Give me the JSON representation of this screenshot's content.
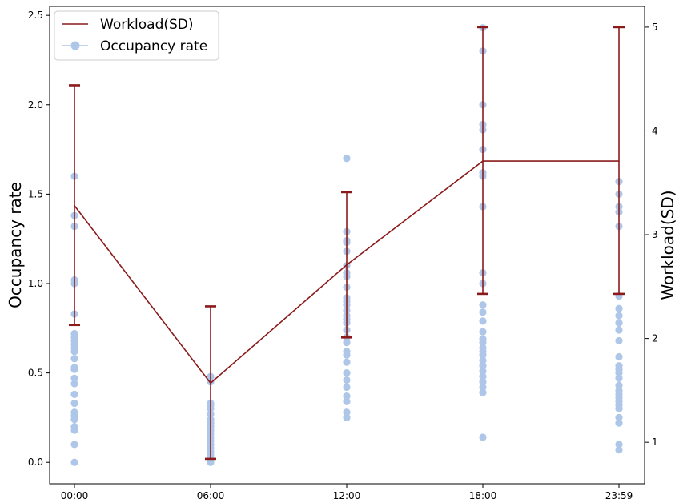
{
  "chart_data": {
    "type": "scatter",
    "categories": [
      "00:00",
      "06:00",
      "12:00",
      "18:00",
      "23:59"
    ],
    "xlabel": "",
    "ylabel": "Occupancy rate",
    "y2label": "Workload(SD)",
    "ylim": [
      -0.12,
      2.55
    ],
    "y2lim": [
      0.6,
      5.2
    ],
    "yticks": [
      "0.0",
      "0.5",
      "1.0",
      "1.5",
      "2.0",
      "2.5"
    ],
    "y2ticks": [
      "1",
      "2",
      "3",
      "4",
      "5"
    ],
    "legend_position": "top-left",
    "series": [
      {
        "name": "Occupancy rate",
        "kind": "scatter",
        "color": "#aec7e8",
        "points": [
          [
            0,
            [
              0.0,
              0.1,
              0.18,
              0.2,
              0.24,
              0.26,
              0.28,
              0.33,
              0.38,
              0.44,
              0.47,
              0.52,
              0.53,
              0.58,
              0.62,
              0.64,
              0.66,
              0.68,
              0.7,
              0.72,
              0.83,
              1.0,
              1.02,
              1.32,
              1.38,
              1.6
            ]
          ],
          [
            1,
            [
              0.0,
              0.02,
              0.04,
              0.06,
              0.08,
              0.1,
              0.12,
              0.14,
              0.16,
              0.18,
              0.2,
              0.22,
              0.24,
              0.27,
              0.3,
              0.32,
              0.33,
              0.45,
              0.47,
              0.48
            ]
          ],
          [
            2,
            [
              0.25,
              0.28,
              0.34,
              0.37,
              0.42,
              0.46,
              0.5,
              0.56,
              0.6,
              0.62,
              0.67,
              0.7,
              0.74,
              0.78,
              0.8,
              0.82,
              0.85,
              0.88,
              0.9,
              0.92,
              0.98,
              1.04,
              1.06,
              1.1,
              1.18,
              1.23,
              1.24,
              1.29,
              1.7
            ]
          ],
          [
            3,
            [
              0.14,
              0.39,
              0.42,
              0.45,
              0.48,
              0.51,
              0.54,
              0.57,
              0.6,
              0.62,
              0.64,
              0.67,
              0.69,
              0.73,
              0.79,
              0.84,
              0.88,
              1.0,
              1.06,
              1.43,
              1.6,
              1.62,
              1.75,
              1.86,
              1.89,
              2.0,
              2.3,
              2.43
            ]
          ],
          [
            4,
            [
              0.07,
              0.1,
              0.22,
              0.25,
              0.3,
              0.32,
              0.34,
              0.36,
              0.38,
              0.4,
              0.43,
              0.47,
              0.5,
              0.52,
              0.54,
              0.59,
              0.68,
              0.74,
              0.78,
              0.82,
              0.86,
              0.93,
              1.32,
              1.4,
              1.43,
              1.5,
              1.57
            ]
          ]
        ]
      },
      {
        "name": "Workload(SD)",
        "kind": "line-errorbar",
        "axis": "right",
        "color": "#8b1a1a",
        "values": [
          3.28,
          1.57,
          2.71,
          3.71,
          3.71
        ],
        "err_low": [
          2.13,
          0.84,
          2.01,
          2.43,
          2.43
        ],
        "err_high": [
          4.44,
          2.31,
          3.41,
          5.0,
          5.0
        ]
      }
    ]
  }
}
